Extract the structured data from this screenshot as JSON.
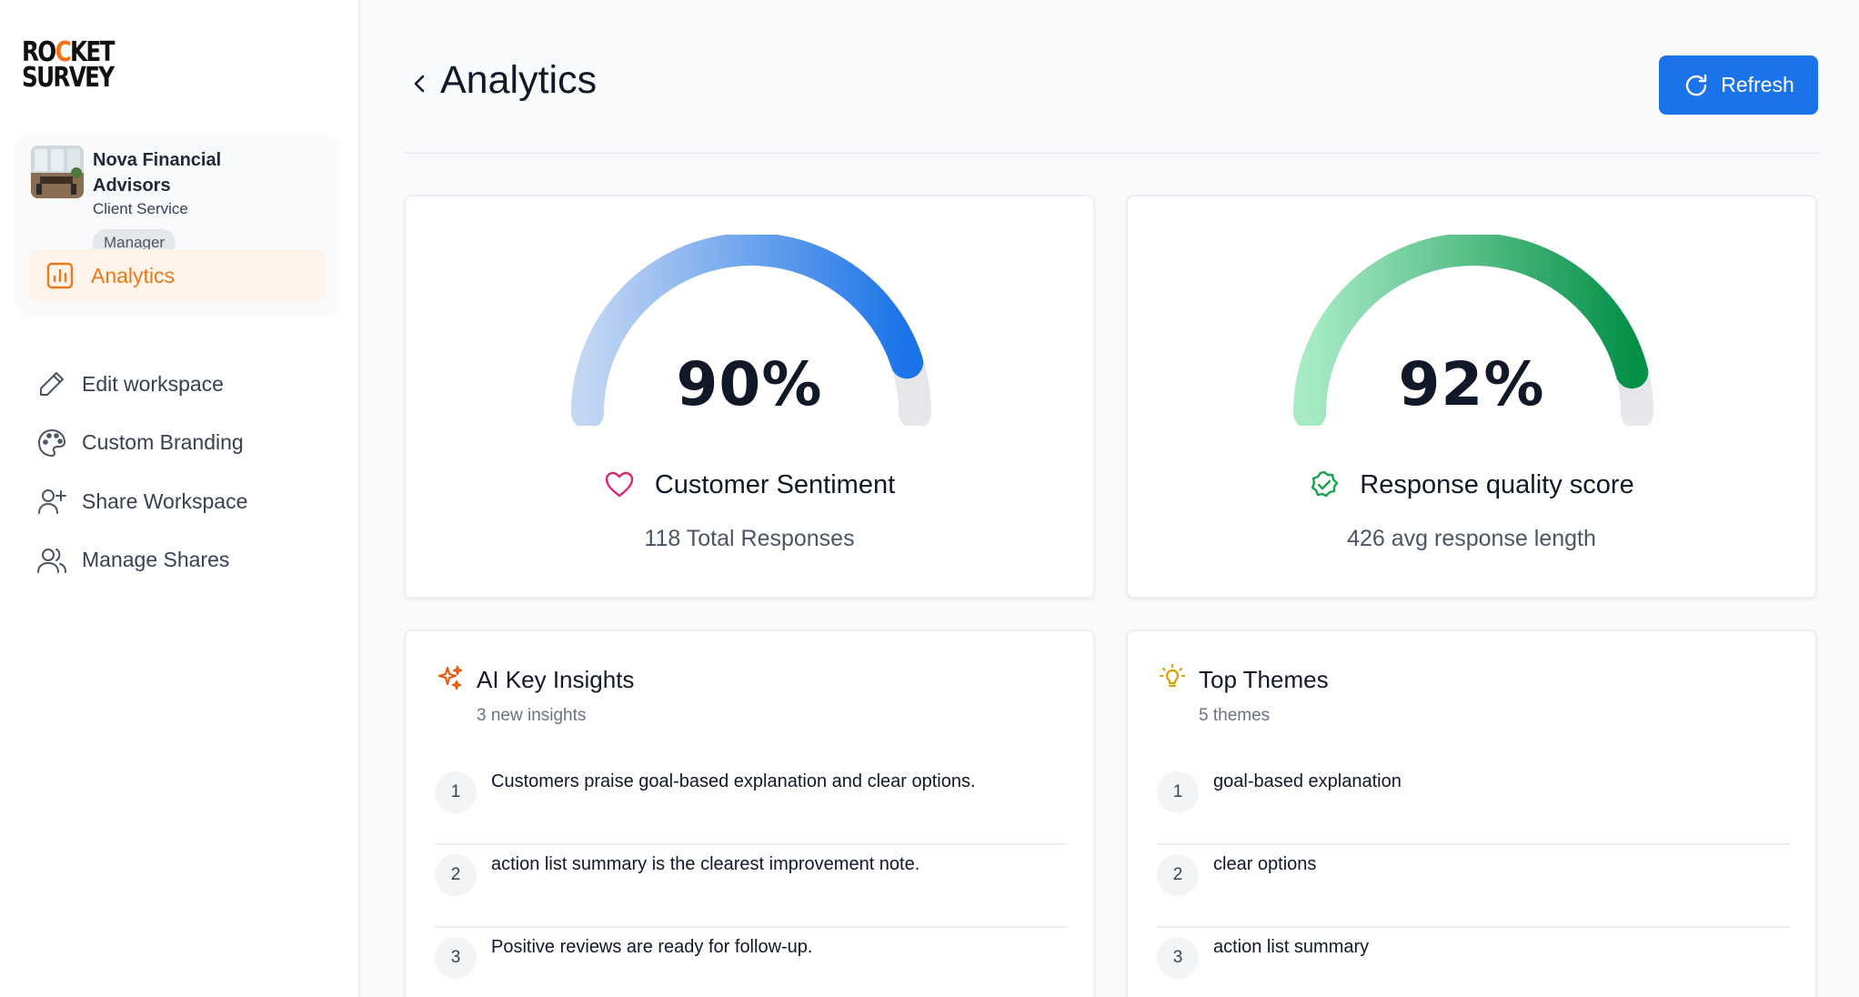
{
  "brand": {
    "line1": "RO",
    "rocket": "C",
    "line1b": "KET",
    "line2": "SURVEY"
  },
  "workspace": {
    "name": "Nova Financial Advisors",
    "subtitle": "Client Service",
    "role": "Manager",
    "active_item": "Analytics"
  },
  "nav": {
    "items": [
      {
        "label": "Edit workspace",
        "icon": "pencil-icon"
      },
      {
        "label": "Custom Branding",
        "icon": "palette-icon"
      },
      {
        "label": "Share Workspace",
        "icon": "user-plus-icon"
      },
      {
        "label": "Manage Shares",
        "icon": "users-icon"
      }
    ]
  },
  "header": {
    "title": "Analytics",
    "refresh_label": "Refresh"
  },
  "gauges": [
    {
      "value_text": "90%",
      "value": 90,
      "label": "Customer Sentiment",
      "sub": "118 Total Responses",
      "icon": "heart-icon",
      "colors": {
        "start": "#c3d6f3",
        "end": "#1a73e8",
        "icon": "#db2777"
      }
    },
    {
      "value_text": "92%",
      "value": 92,
      "label": "Response quality score",
      "sub": "426 avg response length",
      "icon": "badge-check-icon",
      "colors": {
        "start": "#a7ebc5",
        "end": "#059048",
        "icon": "#16a34a"
      }
    }
  ],
  "insights": {
    "title": "AI Key Insights",
    "sub": "3 new insights",
    "items": [
      {
        "n": "1",
        "text": "Customers praise goal-based explanation and clear options."
      },
      {
        "n": "2",
        "text": "action list summary is the clearest improvement note."
      },
      {
        "n": "3",
        "text": "Positive reviews are ready for follow-up."
      }
    ]
  },
  "themes": {
    "title": "Top Themes",
    "sub": "5 themes",
    "items": [
      {
        "n": "1",
        "text": "goal-based explanation"
      },
      {
        "n": "2",
        "text": "clear options"
      },
      {
        "n": "3",
        "text": "action list summary"
      }
    ]
  }
}
